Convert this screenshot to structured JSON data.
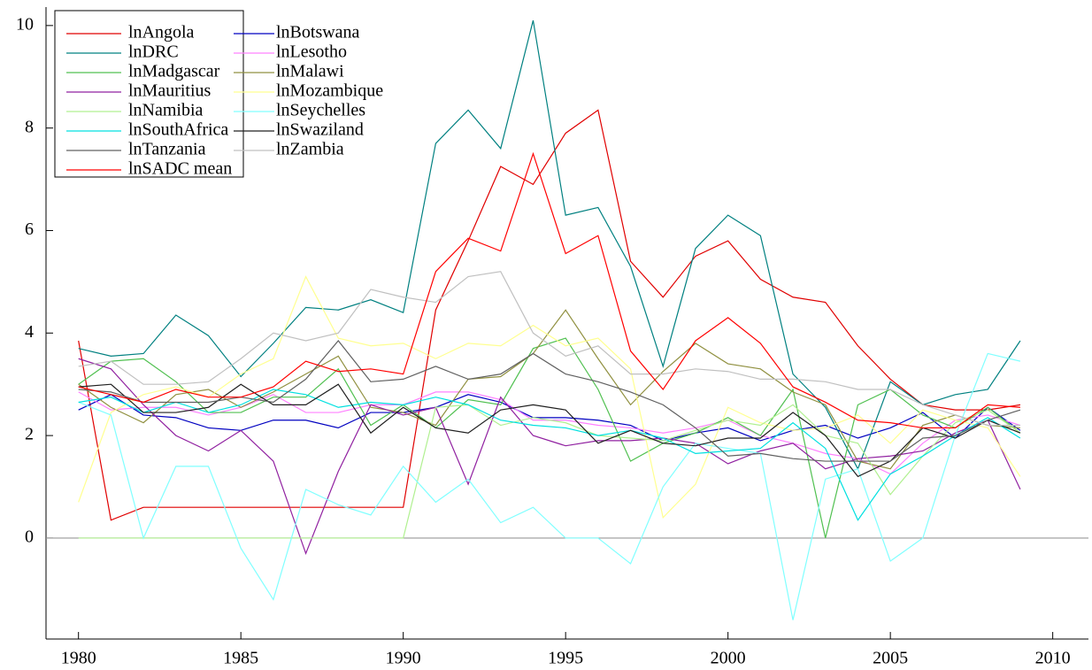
{
  "chart_data": {
    "type": "line",
    "x": [
      1980,
      1981,
      1982,
      1983,
      1984,
      1985,
      1986,
      1987,
      1988,
      1989,
      1990,
      1991,
      1992,
      1993,
      1994,
      1995,
      1996,
      1997,
      1998,
      1999,
      2000,
      2001,
      2002,
      2003,
      2004,
      2005,
      2006,
      2007,
      2008,
      2009
    ],
    "xlim": [
      1979,
      2011.1
    ],
    "ylim": [
      -1.97,
      10.36
    ],
    "xticks": [
      1980,
      1985,
      1990,
      1995,
      2000,
      2005,
      2010
    ],
    "yticks": [
      0,
      2,
      4,
      6,
      8,
      10
    ],
    "hline": 0,
    "legend_position": "upper left",
    "series": [
      {
        "name": "lnAngola",
        "color": "#e00000",
        "values": [
          3.85,
          0.35,
          0.6,
          0.6,
          0.6,
          0.6,
          0.6,
          0.6,
          0.6,
          0.6,
          0.6,
          4.45,
          5.8,
          7.25,
          6.9,
          7.9,
          8.35,
          5.4,
          4.7,
          5.5,
          5.8,
          5.05,
          4.7,
          4.6,
          3.75,
          3.1,
          2.6,
          2.5,
          2.5,
          2.6
        ]
      },
      {
        "name": "lnBotswana",
        "color": "#0000c0",
        "values": [
          2.5,
          2.8,
          2.4,
          2.35,
          2.15,
          2.1,
          2.3,
          2.3,
          2.15,
          2.45,
          2.45,
          2.55,
          2.8,
          2.65,
          2.35,
          2.35,
          2.3,
          2.2,
          1.9,
          2.05,
          2.15,
          1.9,
          2.1,
          2.2,
          1.95,
          2.15,
          2.45,
          1.95,
          2.55,
          2.1
        ]
      },
      {
        "name": "lnDRC",
        "color": "#008080",
        "values": [
          3.7,
          3.55,
          3.6,
          4.35,
          3.95,
          3.15,
          3.8,
          4.5,
          4.45,
          4.65,
          4.4,
          7.7,
          8.35,
          7.6,
          10.1,
          6.3,
          6.45,
          5.3,
          3.35,
          5.65,
          6.3,
          5.9,
          3.2,
          2.55,
          1.35,
          3.05,
          2.6,
          2.8,
          2.9,
          3.85
        ]
      },
      {
        "name": "lnLesotho",
        "color": "#ff80ff",
        "values": [
          2.85,
          2.5,
          2.55,
          2.55,
          2.4,
          2.55,
          2.8,
          2.45,
          2.45,
          2.6,
          2.6,
          2.85,
          2.85,
          2.7,
          2.3,
          2.3,
          2.2,
          2.15,
          2.05,
          2.15,
          2.3,
          2.0,
          1.85,
          1.65,
          1.55,
          1.25,
          1.85,
          2.3,
          2.4,
          2.2
        ]
      },
      {
        "name": "lnMadgascar",
        "color": "#50c050",
        "values": [
          3.0,
          3.45,
          3.5,
          3.05,
          2.45,
          2.45,
          2.75,
          2.75,
          3.3,
          2.2,
          2.6,
          2.15,
          2.7,
          2.6,
          3.7,
          3.9,
          2.9,
          1.5,
          1.85,
          2.05,
          2.35,
          2.0,
          2.9,
          0.0,
          2.6,
          2.9,
          2.4,
          2.15,
          2.55,
          2.05
        ]
      },
      {
        "name": "lnMalawi",
        "color": "#909040",
        "values": [
          3.0,
          2.55,
          2.25,
          2.8,
          2.9,
          2.55,
          2.85,
          3.2,
          3.55,
          2.55,
          2.45,
          2.2,
          3.1,
          3.15,
          3.6,
          4.45,
          3.5,
          2.6,
          3.25,
          3.8,
          3.4,
          3.3,
          2.85,
          2.6,
          1.5,
          1.35,
          2.2,
          2.4,
          2.2,
          2.15
        ]
      },
      {
        "name": "lnMauritius",
        "color": "#9020a0",
        "values": [
          3.5,
          3.3,
          2.6,
          2.0,
          1.7,
          2.1,
          1.5,
          -0.3,
          1.3,
          2.6,
          2.4,
          2.55,
          1.05,
          2.75,
          2.0,
          1.8,
          1.9,
          1.9,
          1.95,
          1.85,
          1.45,
          1.7,
          1.85,
          1.35,
          1.55,
          1.6,
          1.7,
          2.05,
          2.3,
          0.95
        ]
      },
      {
        "name": "lnMozambique",
        "color": "#ffff90",
        "values": [
          0.7,
          2.45,
          2.8,
          2.95,
          2.75,
          3.2,
          3.5,
          5.1,
          3.9,
          3.75,
          3.8,
          3.5,
          3.8,
          3.75,
          4.15,
          3.75,
          3.9,
          3.3,
          0.4,
          1.05,
          2.55,
          2.25,
          2.1,
          2.15,
          2.4,
          1.85,
          2.5,
          2.3,
          2.15,
          1.2
        ]
      },
      {
        "name": "lnNamibia",
        "color": "#b0f090",
        "values": [
          0,
          0,
          0,
          0,
          0,
          0,
          0,
          0,
          0,
          0,
          0,
          2.55,
          2.6,
          2.2,
          2.35,
          2.25,
          2.0,
          1.95,
          1.9,
          2.1,
          2.3,
          2.2,
          2.6,
          2.0,
          1.85,
          0.85,
          1.6,
          2.25,
          2.5,
          2.05
        ]
      },
      {
        "name": "lnSeychelles",
        "color": "#80ffff",
        "values": [
          2.65,
          2.4,
          0.0,
          1.4,
          1.4,
          -0.2,
          -1.2,
          0.95,
          0.65,
          0.45,
          1.4,
          0.7,
          1.15,
          0.3,
          0.6,
          0.0,
          0.0,
          -0.5,
          1.0,
          1.85,
          1.75,
          1.65,
          -1.6,
          1.15,
          1.35,
          -0.45,
          0.0,
          2.0,
          3.6,
          3.45
        ]
      },
      {
        "name": "lnSouthAfrica",
        "color": "#00e0e0",
        "values": [
          2.65,
          2.75,
          2.45,
          2.65,
          2.45,
          2.6,
          2.9,
          2.8,
          2.55,
          2.65,
          2.6,
          2.75,
          2.6,
          2.3,
          2.2,
          2.15,
          2.0,
          2.1,
          1.95,
          1.65,
          1.7,
          1.75,
          2.25,
          1.75,
          0.35,
          1.25,
          1.6,
          2.0,
          2.35,
          1.95
        ]
      },
      {
        "name": "lnSwaziland",
        "color": "#202020",
        "values": [
          2.95,
          3.0,
          2.45,
          2.45,
          2.55,
          3.0,
          2.6,
          2.6,
          3.0,
          2.05,
          2.55,
          2.15,
          2.05,
          2.5,
          2.6,
          2.5,
          1.85,
          2.1,
          1.85,
          1.8,
          1.95,
          1.95,
          2.45,
          2.0,
          1.2,
          1.5,
          2.15,
          1.95,
          2.3,
          2.05
        ]
      },
      {
        "name": "lnTanzania",
        "color": "#606060",
        "values": [
          2.9,
          2.85,
          2.65,
          2.65,
          2.65,
          2.75,
          2.65,
          3.1,
          3.85,
          3.05,
          3.1,
          3.35,
          3.1,
          3.2,
          3.6,
          3.2,
          3.05,
          2.85,
          2.6,
          2.15,
          1.6,
          1.65,
          1.55,
          1.5,
          1.5,
          1.5,
          1.95,
          2.0,
          2.3,
          2.5
        ]
      },
      {
        "name": "lnZambia",
        "color": "#c0c0c0",
        "values": [
          3.35,
          3.45,
          3.0,
          3.0,
          3.05,
          3.5,
          4.0,
          3.85,
          4.0,
          4.85,
          4.7,
          4.6,
          5.1,
          5.2,
          4.0,
          3.55,
          3.75,
          3.2,
          3.2,
          3.3,
          3.25,
          3.1,
          3.1,
          3.05,
          2.9,
          2.9,
          2.6,
          2.4,
          2.2,
          2.2
        ]
      },
      {
        "name": "lnSADC mean",
        "color": "#ff0000",
        "values": [
          2.95,
          2.8,
          2.65,
          2.9,
          2.75,
          2.75,
          2.95,
          3.45,
          3.25,
          3.3,
          3.2,
          5.2,
          5.85,
          5.6,
          7.5,
          5.55,
          5.9,
          3.65,
          2.9,
          3.85,
          4.3,
          3.8,
          2.95,
          2.65,
          2.3,
          2.25,
          2.15,
          2.15,
          2.6,
          2.55
        ]
      }
    ]
  }
}
